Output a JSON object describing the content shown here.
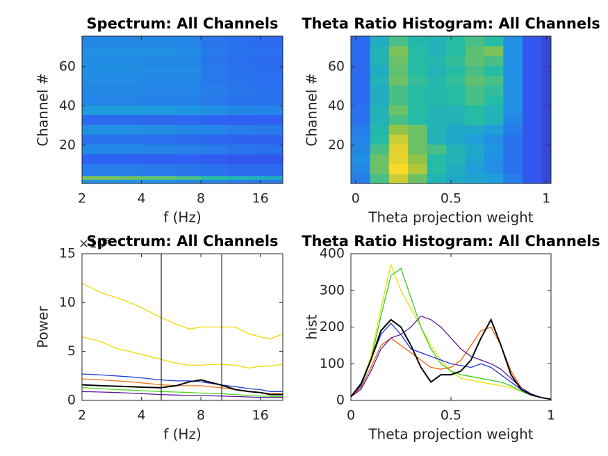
{
  "chart_data": [
    {
      "type": "heatmap",
      "title": "Spectrum: All Channels",
      "xlabel": "f (Hz)",
      "ylabel": "Channel #",
      "xscale": "log",
      "xlim": [
        2,
        20.8
      ],
      "xticks": [
        2,
        4,
        8,
        16
      ],
      "ylim": [
        0.5,
        75.5
      ],
      "yticks": [
        20,
        40,
        60
      ],
      "x_edges": [
        2,
        3,
        4,
        6,
        8,
        11,
        15,
        20.8
      ],
      "y_edges": [
        0.5,
        2.5,
        4.5,
        10.5,
        15.5,
        20.5,
        25.5,
        30.5,
        35.5,
        40.5,
        45.5,
        50.5,
        55.5,
        60.5,
        65.5,
        70.5,
        75.5
      ],
      "z": [
        [
          0.3,
          0.3,
          0.3,
          0.28,
          0.27,
          0.25,
          0.24
        ],
        [
          0.62,
          0.6,
          0.58,
          0.55,
          0.5,
          0.45,
          0.42
        ],
        [
          0.25,
          0.25,
          0.24,
          0.23,
          0.22,
          0.2,
          0.2
        ],
        [
          0.18,
          0.18,
          0.17,
          0.17,
          0.16,
          0.15,
          0.15
        ],
        [
          0.28,
          0.28,
          0.27,
          0.26,
          0.25,
          0.23,
          0.22
        ],
        [
          0.22,
          0.22,
          0.21,
          0.2,
          0.19,
          0.18,
          0.18
        ],
        [
          0.3,
          0.3,
          0.29,
          0.28,
          0.27,
          0.25,
          0.24
        ],
        [
          0.2,
          0.2,
          0.19,
          0.19,
          0.18,
          0.17,
          0.17
        ],
        [
          0.34,
          0.34,
          0.33,
          0.32,
          0.3,
          0.28,
          0.27
        ],
        [
          0.27,
          0.27,
          0.26,
          0.26,
          0.24,
          0.22,
          0.22
        ],
        [
          0.28,
          0.28,
          0.27,
          0.27,
          0.25,
          0.23,
          0.22
        ],
        [
          0.29,
          0.29,
          0.28,
          0.28,
          0.24,
          0.22,
          0.21
        ],
        [
          0.3,
          0.3,
          0.29,
          0.29,
          0.24,
          0.22,
          0.21
        ],
        [
          0.29,
          0.29,
          0.28,
          0.28,
          0.23,
          0.21,
          0.2
        ],
        [
          0.3,
          0.3,
          0.3,
          0.29,
          0.24,
          0.22,
          0.21
        ],
        [
          0.28,
          0.28,
          0.28,
          0.27,
          0.23,
          0.21,
          0.2
        ]
      ],
      "clim": [
        0,
        1
      ],
      "colormap": [
        "#3e26a8",
        "#2f5ef3",
        "#1e9bdf",
        "#25bca5",
        "#9cc43d",
        "#f9d62c",
        "#f9fb15"
      ]
    },
    {
      "type": "heatmap",
      "title": "Theta Ratio Histogram: All Channels",
      "xlabel": "Theta projection weight",
      "ylabel": "Channel #",
      "xlim": [
        -0.025,
        1.025
      ],
      "xticks": [
        0,
        0.5,
        1
      ],
      "ylim": [
        0.5,
        75.5
      ],
      "yticks": [
        20,
        40,
        60
      ],
      "x_edges": [
        -0.025,
        0.075,
        0.175,
        0.275,
        0.375,
        0.475,
        0.575,
        0.675,
        0.775,
        0.875,
        0.975,
        1.025
      ],
      "y_edges": [
        0.5,
        5.5,
        10.5,
        15.5,
        20.5,
        25.5,
        30.5,
        35.5,
        40.5,
        45.5,
        50.5,
        55.5,
        60.5,
        65.5,
        70.5,
        75.5
      ],
      "z": [
        [
          0.25,
          0.55,
          0.75,
          0.6,
          0.45,
          0.4,
          0.38,
          0.35,
          0.25,
          0.15,
          0.1
        ],
        [
          0.28,
          0.6,
          0.85,
          0.7,
          0.5,
          0.42,
          0.35,
          0.3,
          0.22,
          0.15,
          0.1
        ],
        [
          0.3,
          0.6,
          0.8,
          0.65,
          0.5,
          0.45,
          0.38,
          0.3,
          0.22,
          0.15,
          0.1
        ],
        [
          0.28,
          0.55,
          0.8,
          0.6,
          0.55,
          0.45,
          0.4,
          0.32,
          0.22,
          0.15,
          0.1
        ],
        [
          0.27,
          0.5,
          0.75,
          0.6,
          0.45,
          0.4,
          0.35,
          0.3,
          0.22,
          0.15,
          0.1
        ],
        [
          0.25,
          0.48,
          0.65,
          0.6,
          0.45,
          0.4,
          0.4,
          0.35,
          0.25,
          0.15,
          0.1
        ],
        [
          0.22,
          0.45,
          0.55,
          0.5,
          0.45,
          0.45,
          0.5,
          0.45,
          0.28,
          0.15,
          0.1
        ],
        [
          0.22,
          0.45,
          0.6,
          0.5,
          0.45,
          0.45,
          0.5,
          0.45,
          0.3,
          0.15,
          0.1
        ],
        [
          0.2,
          0.42,
          0.55,
          0.5,
          0.48,
          0.5,
          0.55,
          0.5,
          0.3,
          0.15,
          0.1
        ],
        [
          0.2,
          0.42,
          0.55,
          0.5,
          0.48,
          0.5,
          0.55,
          0.52,
          0.3,
          0.15,
          0.1
        ],
        [
          0.2,
          0.45,
          0.6,
          0.52,
          0.48,
          0.52,
          0.58,
          0.55,
          0.3,
          0.15,
          0.1
        ],
        [
          0.2,
          0.42,
          0.58,
          0.5,
          0.45,
          0.5,
          0.55,
          0.5,
          0.3,
          0.15,
          0.1
        ],
        [
          0.2,
          0.45,
          0.6,
          0.5,
          0.48,
          0.52,
          0.58,
          0.55,
          0.3,
          0.15,
          0.1
        ],
        [
          0.2,
          0.45,
          0.62,
          0.5,
          0.45,
          0.5,
          0.58,
          0.62,
          0.3,
          0.15,
          0.1
        ],
        [
          0.2,
          0.42,
          0.55,
          0.48,
          0.45,
          0.5,
          0.55,
          0.5,
          0.3,
          0.15,
          0.1
        ]
      ],
      "clim": [
        0,
        1
      ],
      "colormap": [
        "#3e26a8",
        "#2f5ef3",
        "#1e9bdf",
        "#25bca5",
        "#9cc43d",
        "#f9d62c",
        "#f9fb15"
      ]
    },
    {
      "type": "line",
      "title": "Spectrum: All Channels",
      "xlabel": "f (Hz)",
      "ylabel": "Power",
      "y_exponent_label": "×10⁵",
      "xscale": "log",
      "xlim": [
        2,
        20.8
      ],
      "xticks": [
        2,
        4,
        8,
        16
      ],
      "ylim": [
        0,
        15
      ],
      "yticks": [
        0,
        5,
        10,
        15
      ],
      "vlines": [
        5.04,
        10.2
      ],
      "vline_color": "#000000",
      "x": [
        2,
        2.5,
        3,
        3.5,
        4,
        5,
        6,
        7,
        8,
        10,
        12,
        14,
        16,
        18,
        20.8
      ],
      "series": [
        {
          "color": "#f2d800",
          "values": [
            12,
            11,
            10.5,
            10,
            9.5,
            8.5,
            7.8,
            7.3,
            7.5,
            7.5,
            7.5,
            6.8,
            6.5,
            6.3,
            6.8
          ]
        },
        {
          "color": "#f2d800",
          "values": [
            6.5,
            6,
            5.3,
            5,
            4.7,
            4.2,
            3.8,
            3.6,
            3.6,
            3.7,
            3.6,
            3.3,
            3.5,
            3.5,
            3.7
          ]
        },
        {
          "color": "#1f3fd8",
          "values": [
            2.7,
            2.6,
            2.5,
            2.4,
            2.3,
            2.1,
            2,
            2,
            1.9,
            1.6,
            1.4,
            1.2,
            1.1,
            0.9,
            0.9
          ]
        },
        {
          "color": "#f07020",
          "values": [
            2.2,
            2.1,
            2,
            1.9,
            1.8,
            1.6,
            1.5,
            1.5,
            1.5,
            1.3,
            1.1,
            0.9,
            0.8,
            0.7,
            0.7
          ]
        },
        {
          "color": "#000000",
          "values": [
            1.6,
            1.5,
            1.45,
            1.4,
            1.35,
            1.3,
            1.5,
            1.9,
            2.1,
            1.6,
            1.1,
            0.9,
            0.8,
            0.6,
            0.6
          ]
        },
        {
          "color": "#4cd820",
          "values": [
            1.3,
            1.2,
            1.1,
            1.05,
            1,
            0.9,
            0.85,
            0.8,
            0.75,
            0.7,
            0.6,
            0.5,
            0.45,
            0.4,
            0.4
          ]
        },
        {
          "color": "#5a1a9a",
          "values": [
            0.9,
            0.85,
            0.8,
            0.75,
            0.7,
            0.6,
            0.55,
            0.5,
            0.5,
            0.45,
            0.4,
            0.35,
            0.3,
            0.3,
            0.3
          ]
        }
      ]
    },
    {
      "type": "line",
      "title": "Theta Ratio Histogram: All Channels",
      "xlabel": "Theta projection weight",
      "ylabel": "hist",
      "xlim": [
        0,
        1
      ],
      "xticks": [
        0,
        0.5,
        1
      ],
      "ylim": [
        0,
        400
      ],
      "yticks": [
        0,
        100,
        200,
        300,
        400
      ],
      "x": [
        0,
        0.05,
        0.1,
        0.15,
        0.2,
        0.25,
        0.3,
        0.35,
        0.4,
        0.45,
        0.5,
        0.55,
        0.6,
        0.65,
        0.7,
        0.75,
        0.8,
        0.85,
        0.9,
        0.95,
        1
      ],
      "series": [
        {
          "color": "#e8e000",
          "values": [
            10,
            40,
            120,
            250,
            370,
            300,
            250,
            200,
            150,
            110,
            80,
            60,
            55,
            50,
            45,
            40,
            35,
            25,
            15,
            8,
            3
          ]
        },
        {
          "color": "#30d020",
          "values": [
            10,
            35,
            110,
            230,
            340,
            360,
            280,
            200,
            140,
            100,
            80,
            70,
            65,
            60,
            55,
            50,
            40,
            25,
            15,
            8,
            3
          ]
        },
        {
          "color": "#1a30e0",
          "values": [
            10,
            40,
            110,
            180,
            210,
            180,
            140,
            130,
            120,
            110,
            100,
            95,
            90,
            100,
            90,
            70,
            50,
            30,
            18,
            8,
            3
          ]
        },
        {
          "color": "#f06010",
          "values": [
            10,
            35,
            90,
            150,
            170,
            150,
            130,
            110,
            90,
            85,
            90,
            110,
            150,
            190,
            200,
            150,
            80,
            35,
            18,
            8,
            3
          ]
        },
        {
          "color": "#5a1a9a",
          "values": [
            10,
            30,
            80,
            140,
            170,
            180,
            200,
            230,
            220,
            200,
            170,
            140,
            120,
            110,
            100,
            85,
            60,
            35,
            18,
            8,
            3
          ]
        },
        {
          "color": "#000000",
          "values": [
            10,
            45,
            110,
            190,
            220,
            200,
            150,
            90,
            50,
            70,
            70,
            80,
            110,
            170,
            220,
            150,
            70,
            30,
            15,
            8,
            3
          ]
        }
      ]
    }
  ]
}
